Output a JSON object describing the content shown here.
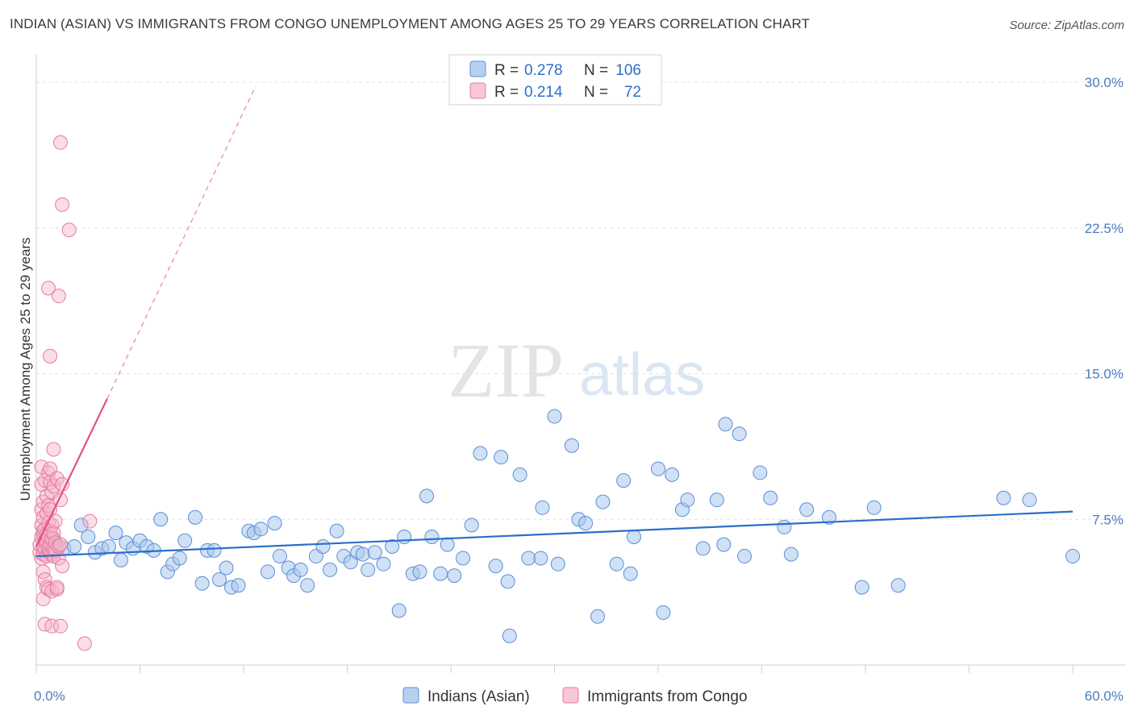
{
  "header": {
    "title": "INDIAN (ASIAN) VS IMMIGRANTS FROM CONGO UNEMPLOYMENT AMONG AGES 25 TO 29 YEARS CORRELATION CHART",
    "source": "Source: ZipAtlas.com"
  },
  "watermark": {
    "zip": "ZIP",
    "atlas": "atlas"
  },
  "colors": {
    "blue": "#5b8fd6",
    "blue_fill": "#aac6ec",
    "blue_line": "#2a6fc9",
    "pink": "#e87aa0",
    "pink_fill": "#f4b4c8",
    "pink_line": "#e0527f",
    "axis_text": "#4a7cc0",
    "grid": "#e2e2e2"
  },
  "legend": {
    "rows": [
      {
        "r_label": "R =",
        "r_value": "0.278",
        "n_label": "N =",
        "n_value": "106"
      },
      {
        "r_label": "R =",
        "r_value": "0.214",
        "n_label": "N =",
        "n_value": "72"
      }
    ]
  },
  "chart_data": {
    "type": "scatter",
    "title": "INDIAN (ASIAN) VS IMMIGRANTS FROM CONGO UNEMPLOYMENT AMONG AGES 25 TO 29 YEARS CORRELATION CHART",
    "xlabel": "",
    "ylabel": "Unemployment Among Ages 25 to 29 years",
    "xlim": [
      0,
      60
    ],
    "ylim": [
      0,
      31
    ],
    "x_tick_labels": [
      "0.0%",
      "60.0%"
    ],
    "y_ticks": [
      7.5,
      15.0,
      22.5,
      30.0
    ],
    "y_tick_labels": [
      "7.5%",
      "15.0%",
      "22.5%",
      "30.0%"
    ],
    "grid": true,
    "series": [
      {
        "name": "Indians (Asian)",
        "color": "#5b8fd6",
        "trend": {
          "x": [
            0,
            60
          ],
          "y": [
            5.6,
            7.9
          ]
        },
        "points": [
          [
            0.4,
            6.7
          ],
          [
            0.6,
            6.2
          ],
          [
            0.8,
            6.0
          ],
          [
            1.0,
            6.5
          ],
          [
            1.2,
            6.0
          ],
          [
            1.6,
            6.0
          ],
          [
            2.2,
            6.1
          ],
          [
            2.6,
            7.2
          ],
          [
            3.0,
            6.6
          ],
          [
            3.4,
            5.8
          ],
          [
            3.8,
            6.0
          ],
          [
            4.2,
            6.1
          ],
          [
            4.6,
            6.8
          ],
          [
            4.9,
            5.4
          ],
          [
            5.2,
            6.3
          ],
          [
            5.6,
            6.0
          ],
          [
            6.0,
            6.4
          ],
          [
            6.4,
            6.1
          ],
          [
            6.8,
            5.9
          ],
          [
            7.2,
            7.5
          ],
          [
            7.6,
            4.8
          ],
          [
            7.9,
            5.2
          ],
          [
            8.3,
            5.5
          ],
          [
            8.6,
            6.4
          ],
          [
            9.2,
            7.6
          ],
          [
            9.6,
            4.2
          ],
          [
            9.9,
            5.9
          ],
          [
            10.3,
            5.9
          ],
          [
            10.6,
            4.4
          ],
          [
            11.0,
            5.0
          ],
          [
            11.3,
            4.0
          ],
          [
            11.7,
            4.1
          ],
          [
            12.3,
            6.9
          ],
          [
            12.6,
            6.8
          ],
          [
            13.0,
            7.0
          ],
          [
            13.4,
            4.8
          ],
          [
            13.8,
            7.3
          ],
          [
            14.1,
            5.6
          ],
          [
            14.6,
            5.0
          ],
          [
            14.9,
            4.6
          ],
          [
            15.3,
            4.9
          ],
          [
            15.7,
            4.1
          ],
          [
            16.2,
            5.6
          ],
          [
            16.6,
            6.1
          ],
          [
            17.0,
            4.9
          ],
          [
            17.4,
            6.9
          ],
          [
            17.8,
            5.6
          ],
          [
            18.2,
            5.3
          ],
          [
            18.6,
            5.8
          ],
          [
            18.9,
            5.7
          ],
          [
            19.2,
            4.9
          ],
          [
            19.6,
            5.8
          ],
          [
            20.1,
            5.2
          ],
          [
            20.6,
            6.1
          ],
          [
            21.0,
            2.8
          ],
          [
            21.3,
            6.6
          ],
          [
            21.8,
            4.7
          ],
          [
            22.2,
            4.8
          ],
          [
            22.6,
            8.7
          ],
          [
            22.9,
            6.6
          ],
          [
            23.4,
            4.7
          ],
          [
            23.8,
            6.2
          ],
          [
            24.2,
            4.6
          ],
          [
            24.7,
            5.5
          ],
          [
            25.2,
            7.2
          ],
          [
            25.7,
            10.9
          ],
          [
            26.6,
            5.1
          ],
          [
            26.9,
            10.7
          ],
          [
            27.3,
            4.3
          ],
          [
            27.4,
            1.5
          ],
          [
            28.0,
            9.8
          ],
          [
            28.5,
            5.5
          ],
          [
            29.2,
            5.5
          ],
          [
            29.3,
            8.1
          ],
          [
            30.0,
            12.8
          ],
          [
            30.2,
            5.2
          ],
          [
            31.0,
            11.3
          ],
          [
            31.4,
            7.5
          ],
          [
            31.8,
            7.3
          ],
          [
            32.5,
            2.5
          ],
          [
            32.8,
            8.4
          ],
          [
            33.6,
            5.2
          ],
          [
            34.0,
            9.5
          ],
          [
            34.4,
            4.7
          ],
          [
            34.6,
            6.6
          ],
          [
            36.0,
            10.1
          ],
          [
            36.3,
            2.7
          ],
          [
            36.8,
            9.8
          ],
          [
            37.4,
            8.0
          ],
          [
            37.7,
            8.5
          ],
          [
            38.6,
            6.0
          ],
          [
            39.4,
            8.5
          ],
          [
            39.8,
            6.2
          ],
          [
            39.9,
            12.4
          ],
          [
            40.7,
            11.9
          ],
          [
            41.0,
            5.6
          ],
          [
            41.9,
            9.9
          ],
          [
            42.5,
            8.6
          ],
          [
            43.3,
            7.1
          ],
          [
            43.7,
            5.7
          ],
          [
            44.6,
            8.0
          ],
          [
            45.9,
            7.6
          ],
          [
            47.8,
            4.0
          ],
          [
            48.5,
            8.1
          ],
          [
            49.9,
            4.1
          ],
          [
            56.0,
            8.6
          ],
          [
            57.5,
            8.5
          ],
          [
            60.0,
            5.6
          ]
        ]
      },
      {
        "name": "Immigrants from Congo",
        "color": "#e87aa0",
        "trend": {
          "x": [
            0,
            4.1
          ],
          "y": [
            6.1,
            13.7
          ]
        },
        "trend_dashed": {
          "x": [
            4.1,
            12.7
          ],
          "y": [
            13.7,
            29.8
          ]
        },
        "points": [
          [
            0.2,
            5.8
          ],
          [
            0.2,
            6.2
          ],
          [
            0.3,
            6.6
          ],
          [
            0.3,
            5.5
          ],
          [
            0.3,
            7.2
          ],
          [
            0.3,
            8.0
          ],
          [
            0.3,
            9.3
          ],
          [
            0.3,
            10.2
          ],
          [
            0.4,
            4.8
          ],
          [
            0.4,
            5.7
          ],
          [
            0.4,
            6.1
          ],
          [
            0.4,
            6.9
          ],
          [
            0.4,
            7.6
          ],
          [
            0.4,
            8.4
          ],
          [
            0.4,
            3.4
          ],
          [
            0.5,
            5.9
          ],
          [
            0.5,
            6.4
          ],
          [
            0.5,
            7.0
          ],
          [
            0.5,
            9.5
          ],
          [
            0.5,
            4.4
          ],
          [
            0.5,
            2.1
          ],
          [
            0.6,
            5.6
          ],
          [
            0.6,
            6.3
          ],
          [
            0.6,
            6.7
          ],
          [
            0.6,
            7.8
          ],
          [
            0.6,
            8.7
          ],
          [
            0.6,
            4.0
          ],
          [
            0.7,
            5.9
          ],
          [
            0.7,
            6.0
          ],
          [
            0.7,
            6.6
          ],
          [
            0.7,
            7.3
          ],
          [
            0.7,
            8.2
          ],
          [
            0.7,
            9.9
          ],
          [
            0.7,
            3.9
          ],
          [
            0.7,
            19.4
          ],
          [
            0.8,
            5.8
          ],
          [
            0.8,
            6.2
          ],
          [
            0.8,
            6.9
          ],
          [
            0.8,
            8.0
          ],
          [
            0.8,
            9.4
          ],
          [
            0.8,
            10.1
          ],
          [
            0.8,
            15.9
          ],
          [
            0.9,
            5.7
          ],
          [
            0.9,
            6.5
          ],
          [
            0.9,
            7.2
          ],
          [
            0.9,
            8.9
          ],
          [
            0.9,
            3.8
          ],
          [
            0.9,
            2.0
          ],
          [
            1.0,
            5.6
          ],
          [
            1.0,
            6.0
          ],
          [
            1.0,
            6.8
          ],
          [
            1.0,
            9.2
          ],
          [
            1.0,
            11.1
          ],
          [
            1.1,
            5.9
          ],
          [
            1.1,
            6.3
          ],
          [
            1.1,
            7.4
          ],
          [
            1.2,
            9.6
          ],
          [
            1.2,
            3.9
          ],
          [
            1.3,
            5.5
          ],
          [
            1.3,
            6.1
          ],
          [
            1.3,
            19.0
          ],
          [
            1.4,
            26.9
          ],
          [
            1.4,
            6.2
          ],
          [
            1.4,
            8.5
          ],
          [
            1.4,
            2.0
          ],
          [
            1.5,
            23.7
          ],
          [
            1.5,
            5.1
          ],
          [
            1.5,
            9.3
          ],
          [
            1.9,
            22.4
          ],
          [
            2.8,
            1.1
          ],
          [
            3.1,
            7.4
          ],
          [
            1.2,
            4.0
          ]
        ]
      }
    ]
  },
  "bottom_legend": {
    "items": [
      {
        "label": "Indians (Asian)"
      },
      {
        "label": "Immigrants from Congo"
      }
    ]
  }
}
